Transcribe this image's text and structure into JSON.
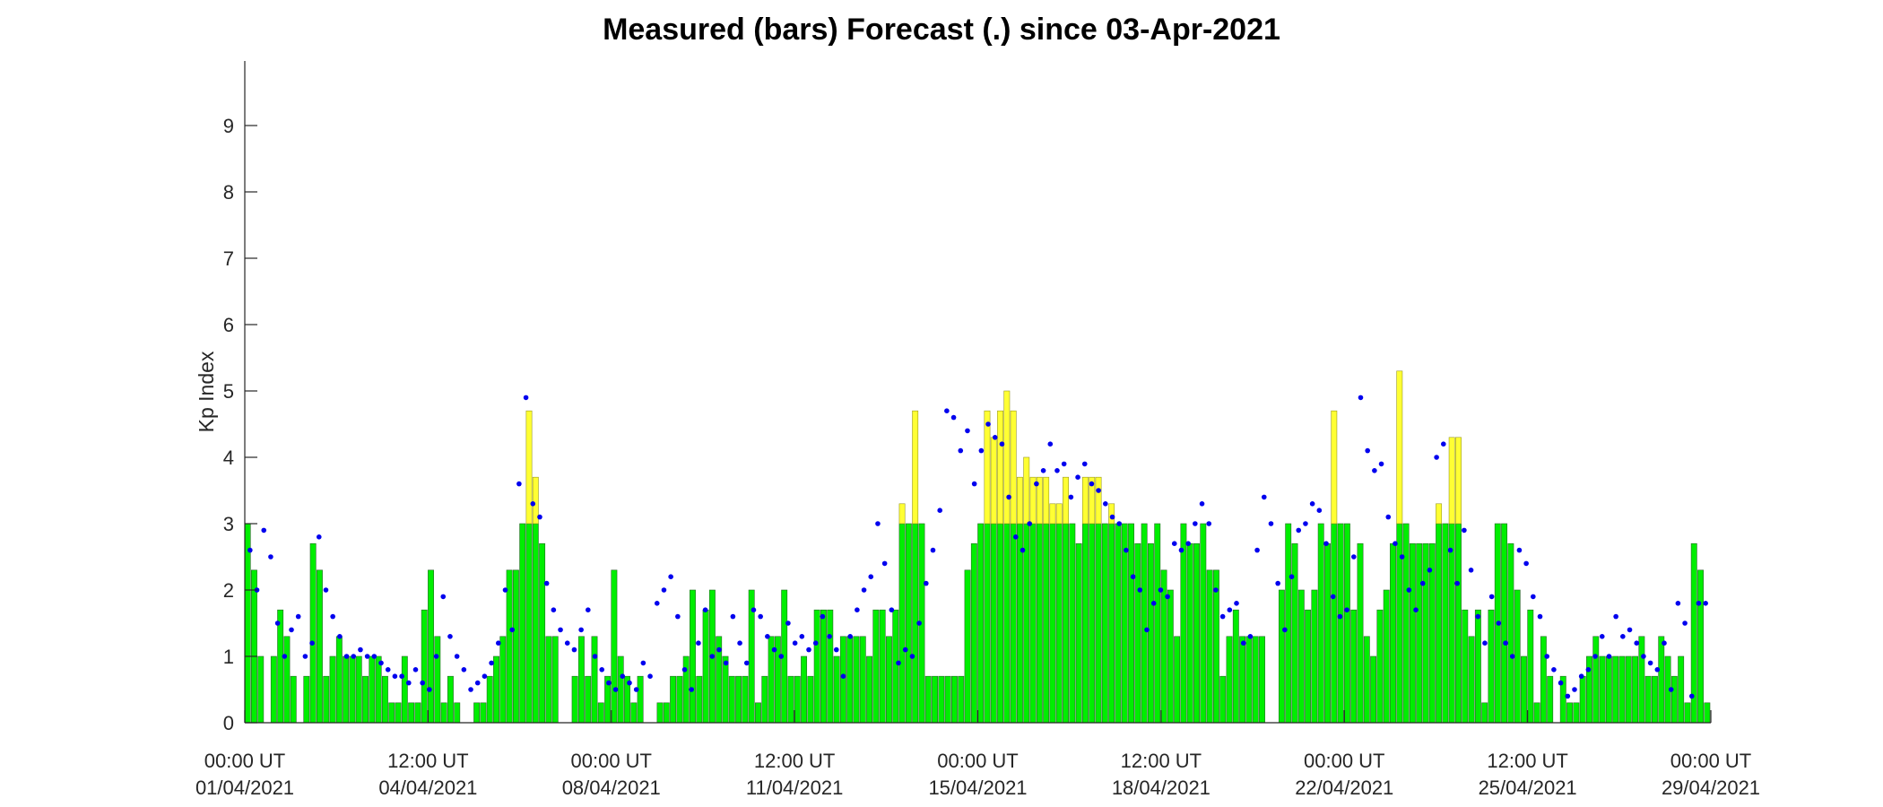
{
  "chart_data": {
    "type": "bar",
    "title": "Measured (bars) Forecast (.) since 03-Apr-2021",
    "xlabel": "",
    "ylabel": "Kp Index",
    "ylim": [
      0,
      10
    ],
    "yticks": [
      "0",
      "1",
      "2",
      "3",
      "4",
      "5",
      "6",
      "7",
      "8",
      "9"
    ],
    "x_axis": {
      "start": "01/04/2021 00:00 UT",
      "end": "30/04/2021 03:00 UT",
      "bin_hours": 3,
      "tick_labels": [
        {
          "hour": 0,
          "line1": "00:00 UT",
          "line2": "01/04/2021"
        },
        {
          "hour": 84,
          "line1": "12:00 UT",
          "line2": "04/04/2021"
        },
        {
          "hour": 168,
          "line1": "00:00 UT",
          "line2": "08/04/2021"
        },
        {
          "hour": 252,
          "line1": "12:00 UT",
          "line2": "11/04/2021"
        },
        {
          "hour": 336,
          "line1": "00:00 UT",
          "line2": "15/04/2021"
        },
        {
          "hour": 420,
          "line1": "12:00 UT",
          "line2": "18/04/2021"
        },
        {
          "hour": 504,
          "line1": "00:00 UT",
          "line2": "22/04/2021"
        },
        {
          "hour": 588,
          "line1": "12:00 UT",
          "line2": "25/04/2021"
        },
        {
          "hour": 672,
          "line1": "00:00 UT",
          "line2": "29/04/2021"
        }
      ]
    },
    "colors": {
      "quiet": "#00ee00",
      "active": "#ffff33",
      "forecast": "#0000ee",
      "bar_edge": "#2a6a2a"
    },
    "measured_kp": [
      3.0,
      2.3,
      1.0,
      0,
      1.0,
      1.7,
      1.3,
      0.7,
      0,
      0.7,
      2.7,
      2.3,
      0.7,
      1.0,
      1.3,
      1.0,
      1.0,
      1.0,
      0.7,
      1.0,
      1.0,
      0.7,
      0.3,
      0.3,
      1.0,
      0.3,
      0.3,
      1.7,
      2.3,
      1.3,
      0.3,
      0.7,
      0.3,
      0,
      0,
      0.3,
      0.3,
      0.7,
      1.0,
      1.3,
      2.3,
      2.3,
      3.0,
      4.7,
      3.7,
      2.7,
      1.3,
      1.3,
      0,
      0,
      0.7,
      1.3,
      0.7,
      1.3,
      0.3,
      0.7,
      2.3,
      1.0,
      0.7,
      0.3,
      0.7,
      0,
      0,
      0.3,
      0.3,
      0.7,
      0.7,
      1.0,
      2.0,
      0.7,
      1.7,
      2.0,
      1.3,
      1.0,
      0.7,
      0.7,
      0.7,
      2.0,
      0.3,
      0.7,
      1.3,
      1.3,
      2.0,
      0.7,
      0.7,
      1.0,
      0.7,
      1.7,
      1.7,
      1.7,
      1.0,
      1.3,
      1.3,
      1.3,
      1.3,
      1.0,
      1.7,
      1.7,
      1.3,
      1.7,
      3.3,
      3.0,
      4.7,
      3.0,
      0.7,
      0.7,
      0.7,
      0.7,
      0.7,
      0.7,
      2.3,
      2.7,
      3.0,
      4.7,
      4.3,
      4.7,
      5.0,
      4.7,
      3.7,
      4.0,
      3.7,
      3.7,
      3.7,
      3.3,
      3.3,
      3.7,
      3.0,
      2.7,
      3.7,
      3.7,
      3.7,
      3.0,
      3.3,
      3.0,
      3.0,
      3.0,
      2.7,
      3.0,
      2.7,
      3.0,
      2.3,
      2.0,
      1.3,
      3.0,
      2.7,
      2.7,
      3.0,
      2.3,
      2.3,
      0.7,
      1.3,
      1.7,
      1.3,
      1.3,
      1.3,
      1.3,
      0,
      0,
      2.0,
      3.0,
      2.7,
      2.0,
      1.7,
      2.0,
      3.0,
      2.7,
      4.7,
      3.0,
      3.0,
      1.7,
      2.7,
      1.3,
      1.0,
      1.7,
      2.0,
      2.7,
      5.3,
      3.0,
      2.7,
      2.7,
      2.7,
      2.7,
      3.3,
      3.0,
      4.3,
      4.3,
      1.7,
      1.3,
      1.7,
      0.3,
      1.7,
      3.0,
      3.0,
      2.7,
      2.0,
      1.0,
      1.7,
      0.3,
      1.3,
      0.7,
      0,
      0.7,
      0.3,
      0.3,
      0.7,
      1.0,
      1.3,
      1.0,
      1.0,
      1.0,
      1.0,
      1.0,
      1.0,
      1.3,
      0.7,
      0.7,
      1.3,
      1.0,
      0.7,
      1.0,
      0.3,
      2.7,
      2.3,
      0.3
    ],
    "forecast_kp": [
      2.6,
      2.0,
      2.9,
      2.5,
      1.5,
      1.0,
      1.4,
      1.6,
      1.0,
      1.2,
      2.8,
      2.0,
      1.6,
      1.3,
      1.0,
      1.0,
      1.1,
      1.0,
      1.0,
      0.9,
      0.8,
      0.7,
      0.7,
      0.6,
      0.8,
      0.6,
      0.5,
      1.0,
      1.9,
      1.3,
      1.0,
      0.8,
      0.5,
      0.6,
      0.7,
      0.9,
      1.2,
      2.0,
      1.4,
      3.6,
      4.9,
      3.3,
      3.1,
      2.1,
      1.7,
      1.4,
      1.2,
      1.1,
      1.4,
      1.7,
      1.0,
      0.8,
      0.6,
      0.5,
      0.7,
      0.6,
      0.5,
      0.9,
      0.7,
      1.8,
      2.0,
      2.2,
      1.6,
      0.8,
      0.5,
      1.2,
      1.7,
      1.0,
      1.1,
      0.9,
      1.6,
      1.2,
      0.9,
      1.7,
      1.6,
      1.3,
      1.1,
      1.0,
      1.5,
      1.2,
      1.3,
      1.1,
      1.2,
      1.6,
      1.3,
      1.1,
      0.7,
      1.3,
      1.7,
      2.0,
      2.2,
      3.0,
      2.4,
      1.7,
      0.9,
      1.1,
      1.0,
      1.5,
      2.1,
      2.6,
      3.2,
      4.7,
      4.6,
      4.1,
      4.4,
      3.6,
      4.1,
      4.5,
      4.3,
      4.2,
      3.4,
      2.8,
      2.6,
      3.0,
      3.6,
      3.8,
      4.2,
      3.8,
      3.9,
      3.4,
      3.7,
      3.9,
      3.6,
      3.5,
      3.3,
      3.1,
      3.0,
      2.6,
      2.2,
      2.0,
      1.4,
      1.8,
      2.0,
      1.9,
      2.7,
      2.6,
      2.7,
      3.0,
      3.3,
      3.0,
      2.0,
      1.6,
      1.7,
      1.8,
      1.2,
      1.3,
      2.6,
      3.4,
      3.0,
      2.1,
      1.4,
      2.2,
      2.9,
      3.0,
      3.3,
      3.2,
      2.7,
      1.9,
      1.6,
      1.7,
      2.5,
      4.9,
      4.1,
      3.8,
      3.9,
      3.1,
      2.7,
      2.5,
      2.0,
      1.7,
      2.1,
      2.3,
      4.0,
      4.2,
      2.6,
      2.1,
      2.9,
      2.3,
      1.6,
      1.2,
      1.9,
      1.5,
      1.2,
      1.0,
      2.6,
      2.4,
      1.9,
      1.6,
      1.0,
      0.8,
      0.6,
      0.4,
      0.5,
      0.7,
      0.8,
      1.0,
      1.3,
      1.0,
      1.6,
      1.3,
      1.4,
      1.2,
      1.0,
      0.9,
      0.8,
      1.2,
      0.5,
      1.8,
      1.5,
      0.4,
      1.8,
      1.8
    ]
  }
}
